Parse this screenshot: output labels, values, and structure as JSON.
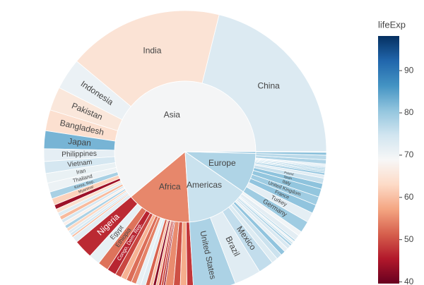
{
  "chart_data": {
    "type": "sunburst",
    "colorbar_title": "lifeExp",
    "colorscale": [
      "#67001f",
      "#b2182b",
      "#d6604d",
      "#f4a582",
      "#fddbc7",
      "#f7f7f7",
      "#d1e5f0",
      "#92c5de",
      "#4393c3",
      "#2166ac",
      "#053061"
    ],
    "clim": [
      39.6,
      98.2
    ],
    "cticks": [
      40,
      50,
      60,
      70,
      80,
      90
    ],
    "continents": [
      {
        "name": "Asia",
        "value": 3811.4,
        "lifeExp": 69.4,
        "children": [
          {
            "name": "China",
            "value": 1319,
            "lifeExp": 73
          },
          {
            "name": "India",
            "value": 1110,
            "lifeExp": 64.7
          },
          {
            "name": "Indonesia",
            "value": 224,
            "lifeExp": 70.7
          },
          {
            "name": "Pakistan",
            "value": 169,
            "lifeExp": 65.5
          },
          {
            "name": "Bangladesh",
            "value": 150,
            "lifeExp": 64.1
          },
          {
            "name": "Japan",
            "value": 127,
            "lifeExp": 82.6
          },
          {
            "name": "Philippines",
            "value": 91,
            "lifeExp": 71.7
          },
          {
            "name": "Vietnam",
            "value": 85,
            "lifeExp": 74.2
          },
          {
            "name": "Iran",
            "value": 69,
            "lifeExp": 71
          },
          {
            "name": "Thailand",
            "value": 65,
            "lifeExp": 70.6
          },
          {
            "name": "Korea, Rep.",
            "value": 49,
            "lifeExp": 78.6
          },
          {
            "name": "Myanmar",
            "value": 48,
            "lifeExp": 62.1
          },
          {
            "name": null,
            "value": 31.9,
            "lifeExp": 43.8
          },
          {
            "name": null,
            "value": 28.9,
            "lifeExp": 63.8
          },
          {
            "name": null,
            "value": 27.6,
            "lifeExp": 72.8
          },
          {
            "name": null,
            "value": 27.5,
            "lifeExp": 59.5
          },
          {
            "name": null,
            "value": 24,
            "lifeExp": 74
          },
          {
            "name": null,
            "value": 23.3,
            "lifeExp": 67.3
          },
          {
            "name": null,
            "value": 23.2,
            "lifeExp": 78.4
          },
          {
            "name": null,
            "value": 22.2,
            "lifeExp": 62.7
          },
          {
            "name": null,
            "value": 20.4,
            "lifeExp": 72.4
          },
          {
            "name": null,
            "value": 19.3,
            "lifeExp": 74.1
          },
          {
            "name": null,
            "value": 14.1,
            "lifeExp": 59.7
          },
          {
            "name": null,
            "value": 43,
            "lifeExp": 72
          }
        ]
      },
      {
        "name": "Africa",
        "value": 929.5,
        "lifeExp": 54.6,
        "children": [
          {
            "name": "Nigeria",
            "value": 135,
            "lifeExp": 46.9
          },
          {
            "name": "Egypt",
            "value": 80.3,
            "lifeExp": 71.3
          },
          {
            "name": "Ethiopia",
            "value": 76.5,
            "lifeExp": 52.9
          },
          {
            "name": "Congo, Dem. Rep.",
            "value": 64.6,
            "lifeExp": 46.5
          },
          {
            "name": null,
            "value": 44,
            "lifeExp": 49.3
          },
          {
            "name": null,
            "value": 42.3,
            "lifeExp": 58.6
          },
          {
            "name": null,
            "value": 38.1,
            "lifeExp": 52.5
          },
          {
            "name": null,
            "value": 35.6,
            "lifeExp": 54.1
          },
          {
            "name": null,
            "value": 33.8,
            "lifeExp": 71.2
          },
          {
            "name": null,
            "value": 33.3,
            "lifeExp": 72.3
          },
          {
            "name": null,
            "value": 29.2,
            "lifeExp": 51.5
          },
          {
            "name": null,
            "value": 22.9,
            "lifeExp": 60
          },
          {
            "name": null,
            "value": 20,
            "lifeExp": 42.1
          },
          {
            "name": null,
            "value": 19.2,
            "lifeExp": 59.4
          },
          {
            "name": null,
            "value": 18,
            "lifeExp": 48.3
          },
          {
            "name": null,
            "value": 17.7,
            "lifeExp": 50.4
          },
          {
            "name": null,
            "value": 12.4,
            "lifeExp": 42.7
          },
          {
            "name": null,
            "value": 60,
            "lifeExp": 55
          },
          {
            "name": null,
            "value": 50,
            "lifeExp": 50
          },
          {
            "name": null,
            "value": 50,
            "lifeExp": 58
          },
          {
            "name": null,
            "value": 46.6,
            "lifeExp": 48
          }
        ]
      },
      {
        "name": "Americas",
        "value": 898.9,
        "lifeExp": 75.4,
        "children": [
          {
            "name": "United States",
            "value": 301.1,
            "lifeExp": 78.2
          },
          {
            "name": "Brazil",
            "value": 190,
            "lifeExp": 72.4
          },
          {
            "name": "Mexico",
            "value": 108.7,
            "lifeExp": 76.2
          },
          {
            "name": null,
            "value": 44.2,
            "lifeExp": 72.9
          },
          {
            "name": null,
            "value": 40.3,
            "lifeExp": 75.3
          },
          {
            "name": null,
            "value": 33.4,
            "lifeExp": 80.7
          },
          {
            "name": null,
            "value": 28.7,
            "lifeExp": 71.4
          },
          {
            "name": null,
            "value": 26.1,
            "lifeExp": 73.7
          },
          {
            "name": null,
            "value": 16.3,
            "lifeExp": 78.6
          },
          {
            "name": null,
            "value": 13.8,
            "lifeExp": 75
          },
          {
            "name": null,
            "value": 12.6,
            "lifeExp": 70.3
          },
          {
            "name": null,
            "value": 11.4,
            "lifeExp": 78.3
          },
          {
            "name": null,
            "value": 40,
            "lifeExp": 72
          },
          {
            "name": null,
            "value": 32.3,
            "lifeExp": 70
          }
        ]
      },
      {
        "name": "Europe",
        "value": 576.1,
        "lifeExp": 77.9,
        "children": [
          {
            "name": "Germany",
            "value": 82.4,
            "lifeExp": 79.4
          },
          {
            "name": "Turkey",
            "value": 71.2,
            "lifeExp": 71.8
          },
          {
            "name": "France",
            "value": 61.1,
            "lifeExp": 80.7
          },
          {
            "name": "United Kingdom",
            "value": 60.8,
            "lifeExp": 79.4
          },
          {
            "name": "Italy",
            "value": 58.1,
            "lifeExp": 80.5
          },
          {
            "name": "Spain",
            "value": 40.4,
            "lifeExp": 80.9
          },
          {
            "name": "Poland",
            "value": 38.5,
            "lifeExp": 75.6
          },
          {
            "name": null,
            "value": 22.3,
            "lifeExp": 72.5
          },
          {
            "name": null,
            "value": 16.6,
            "lifeExp": 79.8
          },
          {
            "name": null,
            "value": 10.7,
            "lifeExp": 79.5
          },
          {
            "name": null,
            "value": 10.6,
            "lifeExp": 78.1
          },
          {
            "name": null,
            "value": 10.4,
            "lifeExp": 79.4
          },
          {
            "name": null,
            "value": 10.2,
            "lifeExp": 76.5
          },
          {
            "name": null,
            "value": 10.2,
            "lifeExp": 74
          },
          {
            "name": null,
            "value": 10,
            "lifeExp": 73.3
          },
          {
            "name": null,
            "value": 30,
            "lifeExp": 78
          },
          {
            "name": null,
            "value": 32.6,
            "lifeExp": 77
          }
        ]
      },
      {
        "name": null,
        "value": 24.5,
        "lifeExp": 81.1,
        "children": [
          {
            "name": null,
            "value": 20.4,
            "lifeExp": 81.2
          },
          {
            "name": null,
            "value": 4.1,
            "lifeExp": 80.2
          }
        ]
      }
    ]
  }
}
